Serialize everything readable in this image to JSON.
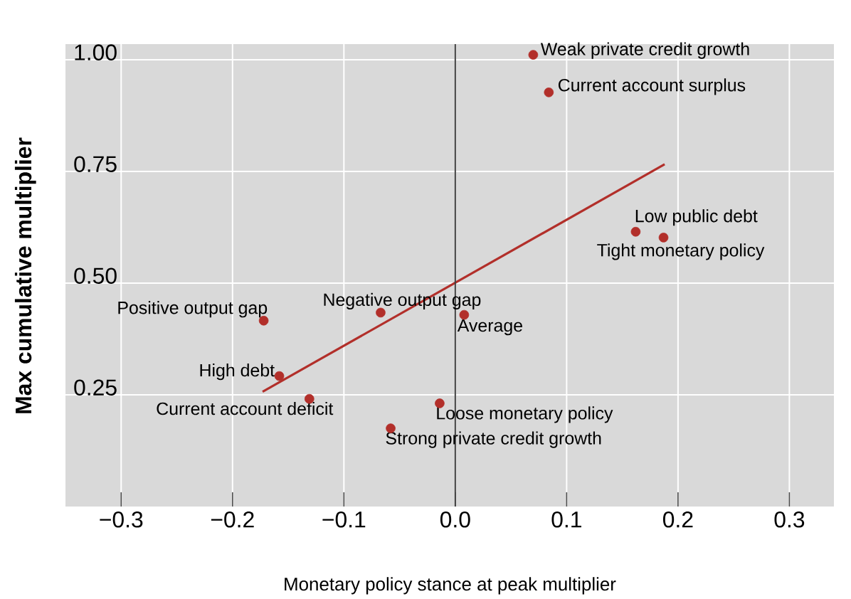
{
  "chart_data": {
    "type": "scatter",
    "xlabel": "Monetary policy stance at peak multiplier",
    "ylabel": "Max cumulative multiplier",
    "xlim": [
      -0.35,
      0.34
    ],
    "ylim": [
      0,
      1.035
    ],
    "xticks": [
      {
        "value": -0.3,
        "label": "−0.3"
      },
      {
        "value": -0.2,
        "label": "−0.2"
      },
      {
        "value": -0.1,
        "label": "−0.1"
      },
      {
        "value": 0,
        "label": "0.0"
      },
      {
        "value": 0.1,
        "label": "0.1"
      },
      {
        "value": 0.2,
        "label": "0.2"
      },
      {
        "value": 0.3,
        "label": "0.3"
      }
    ],
    "yticks": [
      {
        "value": 0.25,
        "label": "0.25"
      },
      {
        "value": 0.5,
        "label": "0.50"
      },
      {
        "value": 0.75,
        "label": "0.75"
      },
      {
        "value": 1.0,
        "label": "1.00"
      }
    ],
    "grid": true,
    "series": [
      {
        "color": "#b22f2a",
        "marker": "circle",
        "x": [
          0.07,
          0.084,
          0.162,
          0.187,
          -0.172,
          -0.067,
          0.008,
          -0.158,
          -0.131,
          -0.014,
          -0.058
        ],
        "values": [
          1.011,
          0.927,
          0.615,
          0.602,
          0.416,
          0.434,
          0.429,
          0.292,
          0.241,
          0.231,
          0.175
        ]
      },
      {
        "type": "line",
        "color": "#b22f2a",
        "marker": "none",
        "x": [
          -0.173,
          0.188
        ],
        "values": [
          0.257,
          0.766
        ]
      }
    ],
    "ref_lines": [
      {
        "axis": "x",
        "value": 0,
        "color": "#404040"
      }
    ],
    "annotations": [
      {
        "text": "Weak private credit growth",
        "x": 0.07,
        "y": 1.011
      },
      {
        "text": "Current account surplus",
        "x": 0.084,
        "y": 0.927
      },
      {
        "text": "Low public debt",
        "x": 0.162,
        "y": 0.615
      },
      {
        "text": "Tight monetary policy",
        "x": 0.187,
        "y": 0.602
      },
      {
        "text": "Positive output gap",
        "x": -0.172,
        "y": 0.416
      },
      {
        "text": "Negative output gap",
        "x": -0.067,
        "y": 0.434
      },
      {
        "text": "Average",
        "x": 0.008,
        "y": 0.429
      },
      {
        "text": "High debt",
        "x": -0.158,
        "y": 0.292
      },
      {
        "text": "Current account deficit",
        "x": -0.131,
        "y": 0.241
      },
      {
        "text": "Loose monetary policy",
        "x": -0.014,
        "y": 0.231
      },
      {
        "text": "Strong private credit growth",
        "x": -0.058,
        "y": 0.175
      }
    ]
  }
}
